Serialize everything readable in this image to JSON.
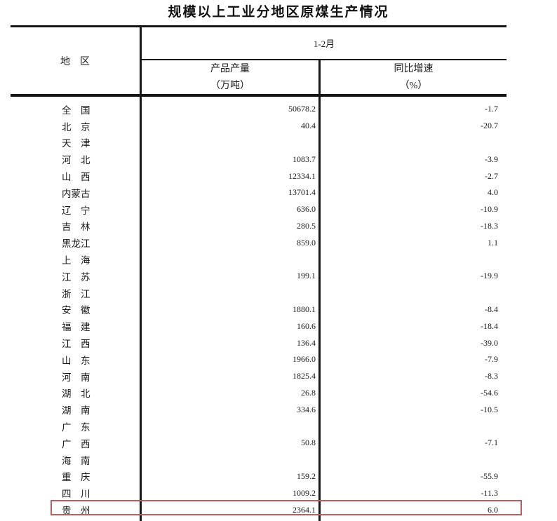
{
  "title": "规模以上工业分地区原煤生产情况",
  "table": {
    "header": {
      "region_label": "地　区",
      "period_label": "1-2月",
      "output_label_line1": "产品产量",
      "output_label_line2": "（万吨）",
      "growth_label_line1": "同比增速",
      "growth_label_line2": "（%）"
    },
    "rows": [
      {
        "region": "全　国",
        "output": "50678.2",
        "growth": "-1.7",
        "highlighted": false
      },
      {
        "region": "北　京",
        "output": "40.4",
        "growth": "-20.7",
        "highlighted": false
      },
      {
        "region": "天　津",
        "output": "",
        "growth": "",
        "highlighted": false
      },
      {
        "region": "河　北",
        "output": "1083.7",
        "growth": "-3.9",
        "highlighted": false
      },
      {
        "region": "山　西",
        "output": "12334.1",
        "growth": "-2.7",
        "highlighted": false
      },
      {
        "region": "内蒙古",
        "output": "13701.4",
        "growth": "4.0",
        "highlighted": false
      },
      {
        "region": "辽　宁",
        "output": "636.0",
        "growth": "-10.9",
        "highlighted": false
      },
      {
        "region": "吉　林",
        "output": "280.5",
        "growth": "-18.3",
        "highlighted": false
      },
      {
        "region": "黑龙江",
        "output": "859.0",
        "growth": "1.1",
        "highlighted": false
      },
      {
        "region": "上　海",
        "output": "",
        "growth": "",
        "highlighted": false
      },
      {
        "region": "江　苏",
        "output": "199.1",
        "growth": "-19.9",
        "highlighted": false
      },
      {
        "region": "浙　江",
        "output": "",
        "growth": "",
        "highlighted": false
      },
      {
        "region": "安　徽",
        "output": "1880.1",
        "growth": "-8.4",
        "highlighted": false
      },
      {
        "region": "福　建",
        "output": "160.6",
        "growth": "-18.4",
        "highlighted": false
      },
      {
        "region": "江　西",
        "output": "136.4",
        "growth": "-39.0",
        "highlighted": false
      },
      {
        "region": "山　东",
        "output": "1966.0",
        "growth": "-7.9",
        "highlighted": false
      },
      {
        "region": "河　南",
        "output": "1825.4",
        "growth": "-8.3",
        "highlighted": false
      },
      {
        "region": "湖　北",
        "output": "26.8",
        "growth": "-54.6",
        "highlighted": false
      },
      {
        "region": "湖　南",
        "output": "334.6",
        "growth": "-10.5",
        "highlighted": false
      },
      {
        "region": "广　东",
        "output": "",
        "growth": "",
        "highlighted": false
      },
      {
        "region": "广　西",
        "output": "50.8",
        "growth": "-7.1",
        "highlighted": false
      },
      {
        "region": "海　南",
        "output": "",
        "growth": "",
        "highlighted": false
      },
      {
        "region": "重　庆",
        "output": "159.2",
        "growth": "-55.9",
        "highlighted": false
      },
      {
        "region": "四　川",
        "output": "1009.2",
        "growth": "-11.3",
        "highlighted": false
      },
      {
        "region": "贵　州",
        "output": "2364.1",
        "growth": "6.0",
        "highlighted": true
      }
    ]
  },
  "highlight": {
    "highlighted_region": "贵　州",
    "border_color": "#b86060"
  }
}
